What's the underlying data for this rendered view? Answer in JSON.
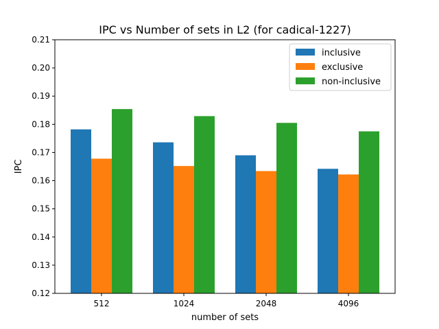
{
  "chart_data": {
    "type": "bar",
    "title": "IPC vs Number of sets in L2 (for cadical-1227)",
    "xlabel": "number of sets",
    "ylabel": "IPC",
    "categories": [
      "512",
      "1024",
      "2048",
      "4096"
    ],
    "series": [
      {
        "name": "inclusive",
        "color": "#1f77b4",
        "values": [
          0.1782,
          0.1736,
          0.169,
          0.1642
        ]
      },
      {
        "name": "exclusive",
        "color": "#ff7f0e",
        "values": [
          0.1678,
          0.1652,
          0.1634,
          0.1622
        ]
      },
      {
        "name": "non-inclusive",
        "color": "#2ca02c",
        "values": [
          0.1854,
          0.1829,
          0.1805,
          0.1775
        ]
      }
    ],
    "ylim": [
      0.12,
      0.21
    ],
    "yticks": [
      "0.12",
      "0.13",
      "0.14",
      "0.15",
      "0.16",
      "0.17",
      "0.18",
      "0.19",
      "0.20",
      "0.21"
    ],
    "grid": false,
    "legend_position": "top-right"
  }
}
